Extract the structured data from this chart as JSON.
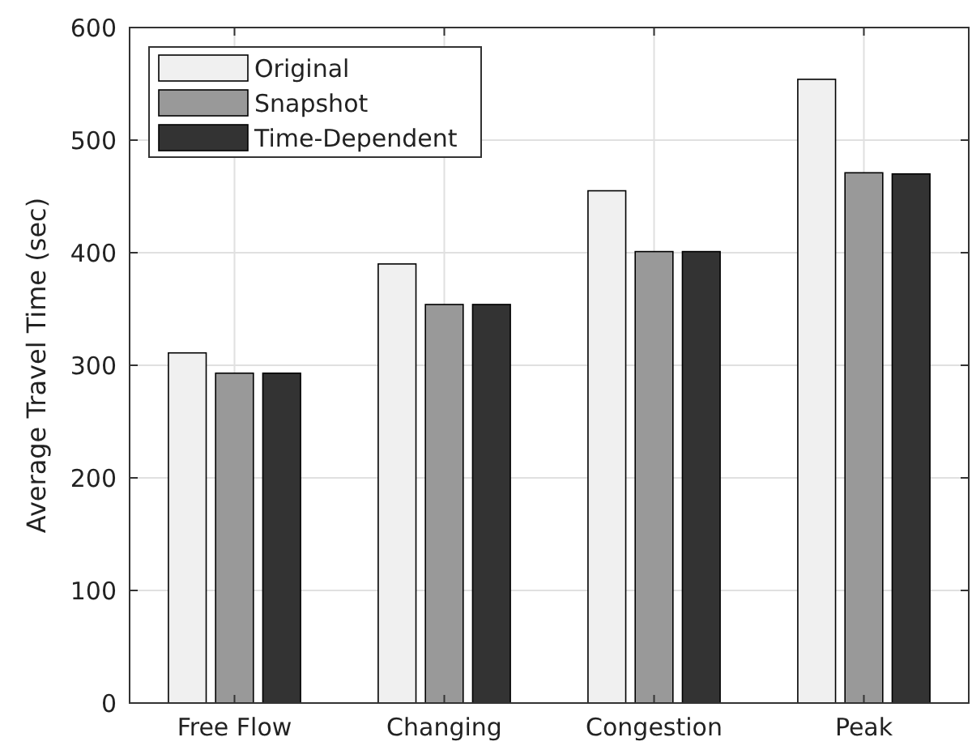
{
  "chart_data": {
    "type": "bar",
    "ylabel": "Average Travel Time (sec)",
    "categories": [
      "Free Flow",
      "Changing",
      "Congestion",
      "Peak"
    ],
    "series": [
      {
        "name": "Original",
        "color": "#f0f0f0",
        "values": [
          311,
          390,
          455,
          554
        ]
      },
      {
        "name": "Snapshot",
        "color": "#999999",
        "values": [
          293,
          354,
          401,
          471
        ]
      },
      {
        "name": "Time-Dependent",
        "color": "#333333",
        "values": [
          293,
          354,
          401,
          470
        ]
      }
    ],
    "ylim": [
      0,
      600
    ],
    "yticks": [
      0,
      100,
      200,
      300,
      400,
      500,
      600
    ],
    "grid": true,
    "legend": "top left"
  }
}
